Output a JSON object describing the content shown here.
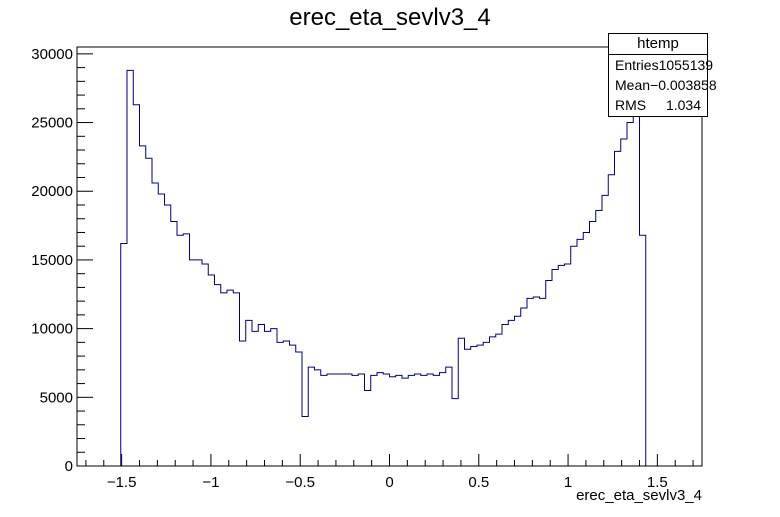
{
  "chart_data": {
    "type": "bar",
    "style": "step-histogram",
    "title": "erec_eta_sevlv3_4",
    "xlabel": "erec_eta_sevlv3_4",
    "ylabel": "",
    "xlim": [
      -1.75,
      1.75
    ],
    "ylim": [
      0,
      30500
    ],
    "x_ticks": [
      -1.5,
      -1,
      -0.5,
      0,
      0.5,
      1,
      1.5
    ],
    "x_tick_labels": [
      "−1.5",
      "−1",
      "−0.5",
      "0",
      "0.5",
      "1",
      "1.5"
    ],
    "y_ticks": [
      0,
      5000,
      10000,
      15000,
      20000,
      25000,
      30000
    ],
    "y_tick_labels": [
      "0",
      "5000",
      "10000",
      "15000",
      "20000",
      "25000",
      "30000"
    ],
    "bin_width": 0.035,
    "bin_start": -1.505,
    "values": [
      16200,
      28800,
      26300,
      23300,
      22400,
      20600,
      19800,
      19000,
      17800,
      16800,
      16900,
      15000,
      15000,
      14700,
      13900,
      13200,
      12600,
      12800,
      12600,
      9100,
      10600,
      9800,
      10300,
      9800,
      10000,
      9000,
      9100,
      8800,
      8300,
      3600,
      7200,
      7000,
      6600,
      6700,
      6700,
      6700,
      6700,
      6600,
      6700,
      5500,
      6600,
      6800,
      6700,
      6500,
      6600,
      6400,
      6600,
      6700,
      6600,
      6700,
      6600,
      6800,
      7200,
      4900,
      9300,
      8500,
      8700,
      8800,
      9000,
      9400,
      9600,
      10300,
      10600,
      10900,
      11500,
      12200,
      12300,
      12200,
      13500,
      14300,
      14600,
      14700,
      16000,
      16500,
      17000,
      17800,
      18600,
      19700,
      21200,
      22900,
      23800,
      25000,
      25700,
      16800
    ],
    "stats": {
      "title": "htemp",
      "rows": [
        {
          "label": "Entries",
          "value": "1055139"
        },
        {
          "label": "Mean",
          "value": "−0.003858"
        },
        {
          "label": "RMS",
          "value": "1.034"
        }
      ]
    },
    "line_color": "#000080",
    "axis_color": "#000000"
  }
}
